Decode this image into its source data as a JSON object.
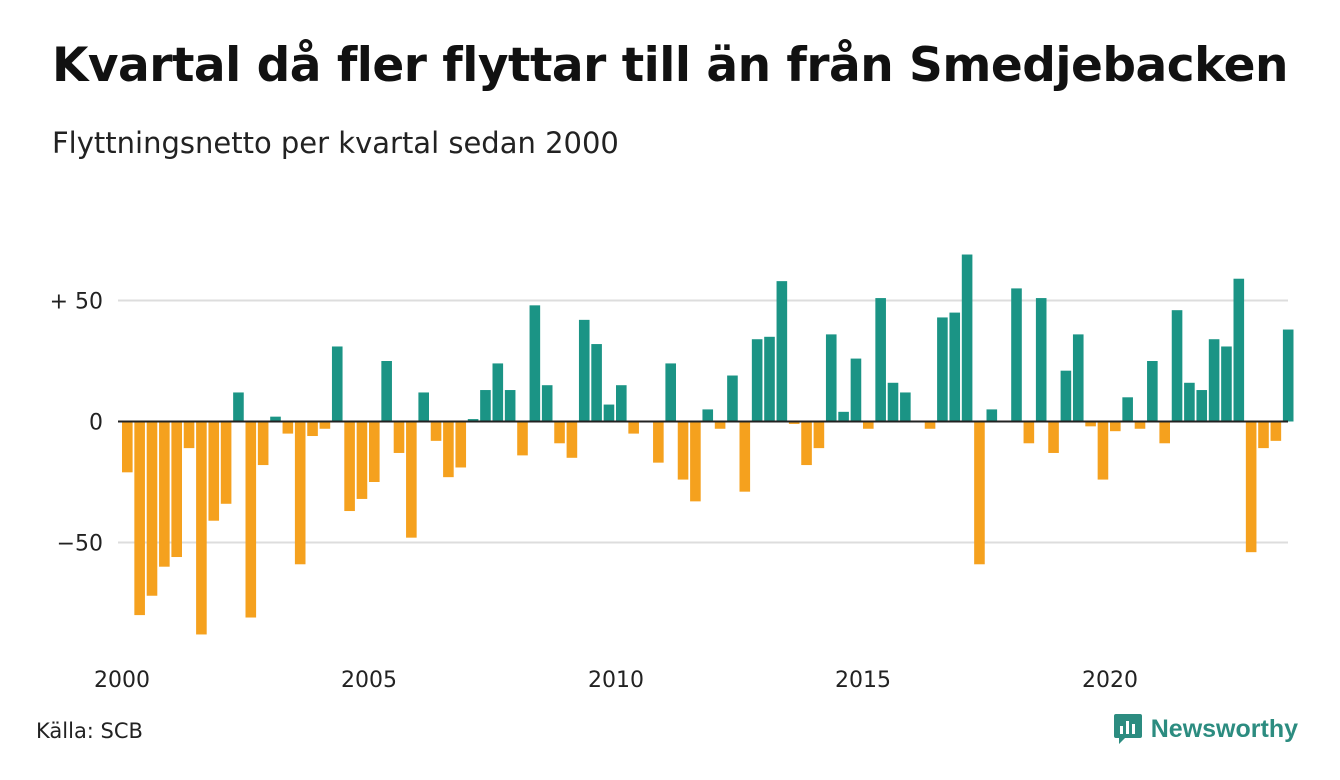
{
  "header": {
    "title": "Kvartal då fler flyttar till än från Smedjebacken",
    "subtitle": "Flyttningsnetto per kvartal sedan 2000"
  },
  "footer": {
    "source": "Källa: SCB",
    "brand": "Newsworthy",
    "brand_icon": "newsworthy-logo-icon"
  },
  "colors": {
    "positive": "#1b9485",
    "negative": "#f5a11e",
    "grid": "#dddddd",
    "brand": "#2c8c80"
  },
  "chart_data": {
    "type": "bar",
    "start_year": 2000,
    "quarters_per_year": 4,
    "ylim": [
      -90,
      72
    ],
    "yticks": [
      {
        "value": 50,
        "label": "+ 50"
      },
      {
        "value": 0,
        "label": "0"
      },
      {
        "value": -50,
        "label": "−50"
      }
    ],
    "xticks": [
      {
        "year": 2000,
        "label": "2000"
      },
      {
        "year": 2005,
        "label": "2005"
      },
      {
        "year": 2010,
        "label": "2010"
      },
      {
        "year": 2015,
        "label": "2015"
      },
      {
        "year": 2020,
        "label": "2020"
      }
    ],
    "values": [
      -21,
      -80,
      -72,
      -60,
      -56,
      -11,
      -88,
      -41,
      -34,
      12,
      -81,
      -18,
      2,
      -5,
      -59,
      -6,
      -3,
      31,
      -37,
      -32,
      -25,
      25,
      -13,
      -48,
      12,
      -8,
      -23,
      -19,
      1,
      13,
      24,
      13,
      -14,
      48,
      15,
      -9,
      -15,
      42,
      32,
      7,
      15,
      -5,
      0,
      -17,
      24,
      -24,
      -33,
      5,
      -3,
      19,
      -29,
      34,
      35,
      58,
      -1,
      -18,
      -11,
      36,
      4,
      26,
      -3,
      51,
      16,
      12,
      0,
      -3,
      43,
      45,
      69,
      -59,
      5,
      0,
      55,
      -9,
      51,
      -13,
      21,
      36,
      -2,
      -24,
      -4,
      10,
      -3,
      25,
      -9,
      46,
      16,
      13,
      34,
      31,
      59,
      -54,
      -11,
      -8,
      38
    ]
  }
}
